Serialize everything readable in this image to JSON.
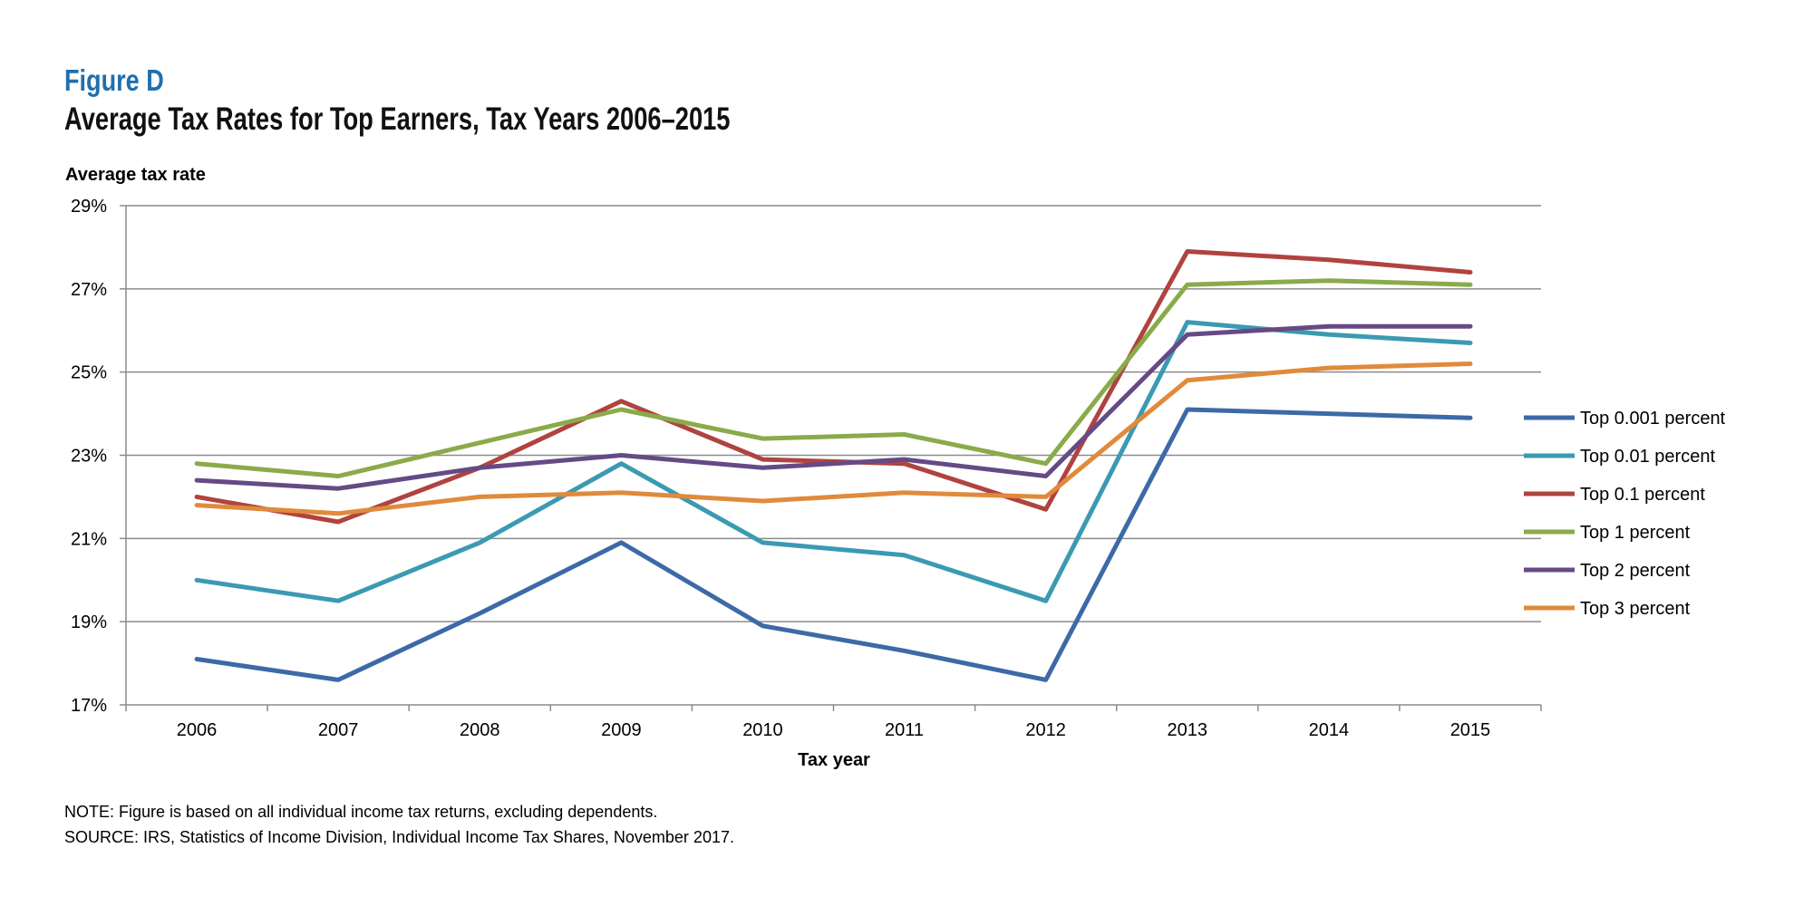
{
  "figure": {
    "label": "Figure D",
    "title": "Average Tax Rates for Top Earners, Tax Years 2006–2015"
  },
  "notes": {
    "note": "NOTE: Figure is based on all individual income tax returns, excluding dependents.",
    "source": "SOURCE: IRS, Statistics of Income Division, Individual Income Tax Shares, November 2017."
  },
  "chart_data": {
    "type": "line",
    "title": "Average Tax Rates for Top Earners, Tax Years 2006–2015",
    "xlabel": "Tax year",
    "ylabel": "Average tax rate",
    "ylim": [
      17,
      29
    ],
    "yticks": [
      "17%",
      "19%",
      "21%",
      "23%",
      "25%",
      "27%",
      "29%"
    ],
    "ytick_values": [
      17,
      19,
      21,
      23,
      25,
      27,
      29
    ],
    "grid": true,
    "legend_position": "right",
    "x": [
      "2006",
      "2007",
      "2008",
      "2009",
      "2010",
      "2011",
      "2012",
      "2013",
      "2014",
      "2015"
    ],
    "series": [
      {
        "name": "Top 0.001 percent",
        "color": "#3d6aa7",
        "values": [
          18.1,
          17.6,
          19.2,
          20.9,
          18.9,
          18.3,
          17.6,
          24.1,
          24.0,
          23.9
        ]
      },
      {
        "name": "Top 0.01 percent",
        "color": "#3b9ab2",
        "values": [
          20.0,
          19.5,
          20.9,
          22.8,
          20.9,
          20.6,
          19.5,
          26.2,
          25.9,
          25.7
        ]
      },
      {
        "name": "Top 0.1 percent",
        "color": "#b0433f",
        "values": [
          22.0,
          21.4,
          22.7,
          24.3,
          22.9,
          22.8,
          21.7,
          27.9,
          27.7,
          27.4
        ]
      },
      {
        "name": "Top 1 percent",
        "color": "#8aab4a",
        "values": [
          22.8,
          22.5,
          23.3,
          24.1,
          23.4,
          23.5,
          22.8,
          27.1,
          27.2,
          27.1
        ]
      },
      {
        "name": "Top 2 percent",
        "color": "#654a85",
        "values": [
          22.4,
          22.2,
          22.7,
          23.0,
          22.7,
          22.9,
          22.5,
          25.9,
          26.1,
          26.1
        ]
      },
      {
        "name": "Top 3 percent",
        "color": "#e08a3c",
        "values": [
          21.8,
          21.6,
          22.0,
          22.1,
          21.9,
          22.1,
          22.0,
          24.8,
          25.1,
          25.2
        ]
      }
    ]
  }
}
